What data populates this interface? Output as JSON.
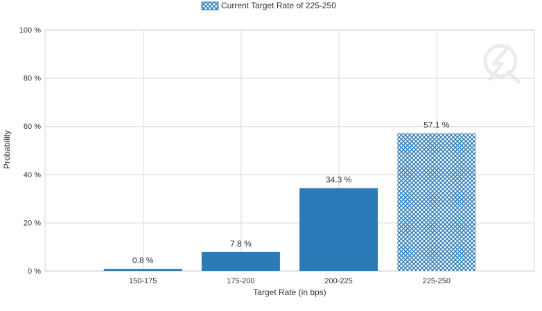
{
  "chart_data": {
    "type": "bar",
    "title": "",
    "categories": [
      "150-175",
      "175-200",
      "200-225",
      "225-250"
    ],
    "values": [
      0.8,
      7.8,
      34.3,
      57.1
    ],
    "data_labels": [
      "0.8 %",
      "7.8 %",
      "34.3 %",
      "57.1 %"
    ],
    "highlight_index": 3,
    "xlabel": "Target Rate (in bps)",
    "ylabel": "Probability",
    "ylim": [
      0,
      100
    ],
    "yticks": [
      0,
      20,
      40,
      60,
      80,
      100
    ],
    "ytick_labels": [
      "0 %",
      "20 %",
      "40 %",
      "60 %",
      "80 %",
      "100 %"
    ],
    "grid": true,
    "legend": {
      "position": "top",
      "entries": [
        "Current Target Rate of 225-250"
      ]
    },
    "colors": {
      "bar": "#2a7ab8",
      "highlight_pattern": "#2a7ab8",
      "grid": "#d6d6d6",
      "axis_text": "#333333"
    }
  },
  "watermark": "logo-q-icon"
}
